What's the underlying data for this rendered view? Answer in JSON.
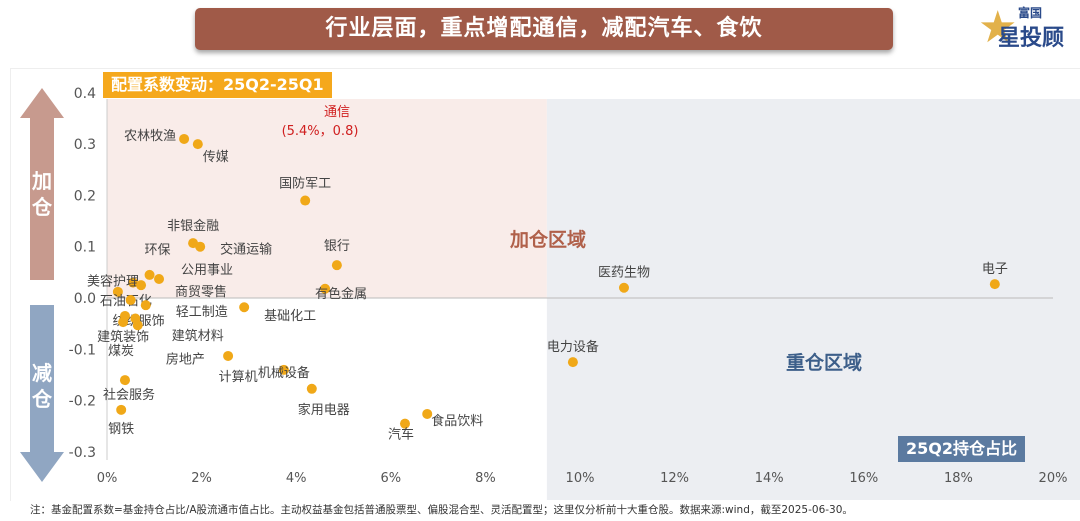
{
  "header": {
    "title": "行业层面，重点增配通信，减配汽车、食饮",
    "logo_top": "富国",
    "logo_bottom": "星投顾"
  },
  "side": {
    "up": "加仓",
    "down": "减仓"
  },
  "footnote": "注：基金配置系数=基金持仓占比/A股流通市值占比。主动权益基金包括普通股票型、偏股混合型、灵活配置型；这里仅分析前十大重仓股。数据来源:wind，截至2025-06-30。",
  "colors": {
    "point": "#f0a818",
    "pink_zone": "#f9ece9",
    "gray_zone": "#eceef2",
    "tag_orange": "#f5a81c",
    "tag_blue": "#5b7aa0"
  },
  "chart_data": {
    "type": "scatter",
    "title": "配置系数变动：25Q2-25Q1",
    "xlabel": "25Q2持仓占比",
    "ylabel": "",
    "xlim": [
      0,
      20
    ],
    "ylim": [
      -0.3,
      0.4
    ],
    "xticks": [
      "0%",
      "2%",
      "4%",
      "6%",
      "8%",
      "10%",
      "12%",
      "14%",
      "16%",
      "18%",
      "20%"
    ],
    "yticks": [
      "0.4",
      "0.3",
      "0.2",
      "0.1",
      "0.0",
      "-0.1",
      "-0.2",
      "-0.3"
    ],
    "zones": {
      "overweight": "加仓区域",
      "heavy": "重仓区域",
      "boundary_x": 9.3
    },
    "annotation": {
      "name": "通信",
      "value": "(5.4%，0.8)"
    },
    "points": [
      {
        "name": "农林牧渔",
        "x": 1.63,
        "y": 0.31
      },
      {
        "name": "传媒",
        "x": 1.92,
        "y": 0.3
      },
      {
        "name": "国防军工",
        "x": 4.19,
        "y": 0.19
      },
      {
        "name": "非银金融",
        "x": 1.82,
        "y": 0.107
      },
      {
        "name": "交通运输",
        "x": 1.97,
        "y": 0.1
      },
      {
        "name": "银行",
        "x": 4.86,
        "y": 0.064
      },
      {
        "name": "有色金属",
        "x": 4.61,
        "y": 0.018
      },
      {
        "name": "环保",
        "x": 0.9,
        "y": 0.045
      },
      {
        "name": "公用事业",
        "x": 1.1,
        "y": 0.037
      },
      {
        "name": "美容护理",
        "x": 0.55,
        "y": 0.03
      },
      {
        "name": "商贸零售",
        "x": 0.72,
        "y": 0.025
      },
      {
        "name": "石油石化",
        "x": 0.23,
        "y": 0.012
      },
      {
        "name": "纺织服饰",
        "x": 0.5,
        "y": -0.004
      },
      {
        "name": "轻工制造",
        "x": 0.82,
        "y": -0.014
      },
      {
        "name": "基础化工",
        "x": 2.9,
        "y": -0.018
      },
      {
        "name": "煤炭",
        "x": 0.38,
        "y": -0.035
      },
      {
        "name": "建筑装饰",
        "x": 0.34,
        "y": -0.047
      },
      {
        "name": "建筑材料",
        "x": 0.65,
        "y": -0.053
      },
      {
        "name": "房地产",
        "x": 0.6,
        "y": -0.04
      },
      {
        "name": "计算机",
        "x": 2.56,
        "y": -0.113
      },
      {
        "name": "机械设备",
        "x": 3.74,
        "y": -0.14
      },
      {
        "name": "家用电器",
        "x": 4.33,
        "y": -0.177
      },
      {
        "name": "社会服务",
        "x": 0.38,
        "y": -0.16
      },
      {
        "name": "钢铁",
        "x": 0.3,
        "y": -0.218
      },
      {
        "name": "汽车",
        "x": 6.3,
        "y": -0.245
      },
      {
        "name": "食品饮料",
        "x": 6.77,
        "y": -0.226
      },
      {
        "name": "医药生物",
        "x": 10.93,
        "y": 0.02
      },
      {
        "name": "电子",
        "x": 18.77,
        "y": 0.027
      },
      {
        "name": "电力设备",
        "x": 9.85,
        "y": -0.125
      }
    ]
  }
}
